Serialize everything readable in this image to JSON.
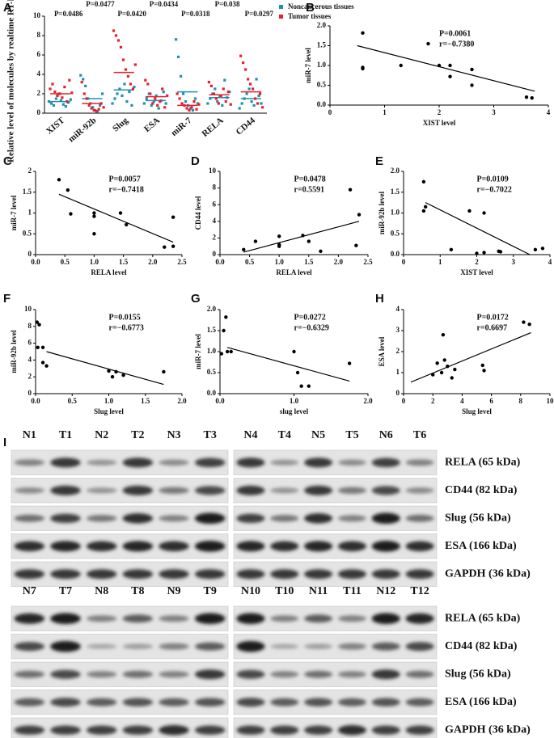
{
  "chart_data": [
    {
      "type": "dotplot",
      "panel": "A",
      "ylabel": "Relative level of molecules by realtime RT-PCR",
      "categories": [
        "XIST",
        "miR-92b",
        "Slug",
        "ESA",
        "miR-7",
        "RELA",
        "CD44"
      ],
      "pvalues": [
        "P=0.0486",
        "P=0.0477",
        "P=0.0420",
        "P=0.0434",
        "P=0.0318",
        "P=0.038",
        "P=0.0297"
      ],
      "ylim": [
        0,
        10
      ],
      "yticks": [
        0,
        2,
        4,
        6,
        8,
        10
      ],
      "series": [
        {
          "name": "Noncancerous tissues",
          "color": "#1f8fb4",
          "values": [
            [
              1.2,
              1.0,
              0.8,
              1.5,
              2.0,
              1.3,
              0.9,
              0.7,
              1.1,
              1.4
            ],
            [
              3.9,
              3.5,
              2.8,
              1.5,
              1.0,
              0.6,
              0.3,
              0.2,
              0.8,
              2.0
            ],
            [
              1.0,
              1.5,
              2.0,
              2.5,
              1.8,
              3.0,
              1.2,
              2.2,
              0.8,
              2.7
            ],
            [
              1.0,
              1.5,
              2.0,
              0.8,
              1.2,
              1.8,
              0.5,
              1.3,
              2.2,
              1.0
            ],
            [
              7.6,
              5.8,
              3.8,
              2.0,
              1.2,
              0.8,
              0.5,
              0.3,
              1.5,
              1.0
            ],
            [
              1.0,
              1.5,
              2.0,
              2.5,
              1.2,
              1.8,
              0.8,
              3.4,
              1.6,
              2.2
            ],
            [
              0.5,
              1.0,
              1.5,
              2.0,
              2.5,
              1.2,
              0.8,
              3.5,
              1.8,
              1.0
            ]
          ],
          "means": [
            1.2,
            1.5,
            2.4,
            1.3,
            2.2,
            1.6,
            1.5
          ]
        },
        {
          "name": "Tumor tissues",
          "color": "#e8202a",
          "values": [
            [
              2.5,
              3.0,
              2.2,
              1.8,
              2.0,
              1.6,
              2.7,
              1.2,
              3.4,
              2.1
            ],
            [
              3.2,
              2.0,
              1.5,
              0.8,
              0.5,
              0.3,
              0.2,
              0.4,
              1.0,
              0.6
            ],
            [
              8.5,
              8.0,
              7.5,
              6.8,
              5.5,
              4.5,
              3.8,
              3.0,
              2.5,
              5.0
            ],
            [
              3.4,
              3.0,
              2.0,
              1.0,
              1.5,
              0.8,
              1.2,
              2.5,
              0.6,
              1.8
            ],
            [
              2.0,
              1.5,
              1.0,
              0.8,
              0.5,
              0.3,
              0.6,
              1.2,
              0.4,
              0.9
            ],
            [
              3.2,
              2.8,
              2.0,
              1.5,
              1.0,
              1.8,
              2.5,
              1.2,
              2.2,
              0.9
            ],
            [
              5.9,
              5.2,
              4.5,
              3.5,
              3.0,
              2.5,
              1.5,
              1.0,
              2.0,
              0.6
            ]
          ],
          "means": [
            2.0,
            1.0,
            4.2,
            1.7,
            0.8,
            1.9,
            2.2
          ]
        }
      ]
    },
    {
      "type": "scatter",
      "panel": "B",
      "xlabel": "XIST level",
      "ylabel": "miR-7 level",
      "annotations": [
        "P=0.0061",
        "r=−0.7380"
      ],
      "color": "#000000",
      "x": [
        0.6,
        0.6,
        0.6,
        1.3,
        1.8,
        2.0,
        2.2,
        2.2,
        2.6,
        2.6,
        3.6,
        3.7
      ],
      "values": [
        1.82,
        0.95,
        0.92,
        1.0,
        1.55,
        1.0,
        1.0,
        0.72,
        0.9,
        0.5,
        0.2,
        0.18
      ],
      "fit": {
        "x": [
          0.5,
          3.75
        ],
        "y": [
          1.5,
          0.35
        ]
      },
      "xlim": [
        0,
        4
      ],
      "xticks": [
        0,
        1,
        2,
        3,
        4
      ],
      "ylim": [
        0,
        2
      ],
      "yticks": [
        {
          "value": 0,
          "label": "0.0"
        },
        {
          "value": 0.5,
          "label": "0.5"
        },
        {
          "value": 1,
          "label": "1.0"
        },
        {
          "value": 1.5,
          "label": "1.5"
        },
        {
          "value": 2,
          "label": "2.0"
        }
      ]
    },
    {
      "type": "scatter",
      "panel": "C",
      "xlabel": "RELA level",
      "ylabel": "miR-7 level",
      "annotations": [
        "P=0.0057",
        "r=−0.7418"
      ],
      "color": "#000000",
      "x": [
        0.4,
        0.55,
        0.6,
        1.0,
        1.0,
        1.0,
        1.45,
        1.55,
        2.2,
        2.35,
        2.35
      ],
      "values": [
        1.8,
        1.55,
        0.98,
        1.0,
        0.92,
        0.5,
        1.0,
        0.72,
        0.18,
        0.2,
        0.9
      ],
      "fit": {
        "x": [
          0.4,
          2.35
        ],
        "y": [
          1.45,
          0.3
        ]
      },
      "xlim": [
        0,
        2.5
      ],
      "xticks": [
        {
          "value": 0,
          "label": "0.0"
        },
        0.5,
        {
          "value": 1,
          "label": "1.0"
        },
        1.5,
        {
          "value": 2,
          "label": "2.0"
        },
        2.5
      ],
      "ylim": [
        0,
        2
      ],
      "yticks": [
        0,
        0.5,
        1,
        1.5,
        2
      ]
    },
    {
      "type": "scatter",
      "panel": "D",
      "xlabel": "RELA level",
      "ylabel": "CD44 level",
      "annotations": [
        "P=0.0478",
        "r=0.5591"
      ],
      "color": "#000000",
      "x": [
        0.4,
        0.6,
        1.0,
        1.0,
        1.0,
        1.4,
        1.5,
        1.7,
        2.2,
        2.3,
        2.35
      ],
      "values": [
        0.6,
        1.6,
        2.2,
        1.2,
        1.0,
        2.3,
        1.6,
        0.4,
        7.8,
        1.1,
        4.8
      ],
      "fit": {
        "x": [
          0.4,
          2.35
        ],
        "y": [
          0.3,
          4.0
        ]
      },
      "xlim": [
        0,
        2.5
      ],
      "xticks": [
        {
          "value": 0,
          "label": "0.0"
        },
        0.5,
        {
          "value": 1,
          "label": "1.0"
        },
        1.5,
        {
          "value": 2,
          "label": "2.0"
        },
        2.5
      ],
      "ylim": [
        0,
        10
      ],
      "yticks": [
        0,
        2,
        4,
        6,
        8,
        10
      ]
    },
    {
      "type": "scatter",
      "panel": "E",
      "xlabel": "XIST level",
      "ylabel": "miR-92b level",
      "annotations": [
        "P=0.0109",
        "r=−0.7022"
      ],
      "color": "#000000",
      "x": [
        0.55,
        0.55,
        0.6,
        1.3,
        1.8,
        2.0,
        2.2,
        2.2,
        2.6,
        2.65,
        3.6,
        3.8
      ],
      "values": [
        1.75,
        1.05,
        1.15,
        0.12,
        1.05,
        0.03,
        1.0,
        0.05,
        0.08,
        0.07,
        0.12,
        0.15
      ],
      "fit": {
        "x": [
          0.6,
          3.45
        ],
        "y": [
          1.25,
          0
        ]
      },
      "xlim": [
        0,
        4
      ],
      "xticks": [
        0,
        1,
        2,
        3,
        4
      ],
      "ylim": [
        0,
        2
      ],
      "yticks": [
        {
          "value": 0,
          "label": "0.0"
        },
        {
          "value": 0.5,
          "label": "0.5"
        },
        {
          "value": 1,
          "label": "1.0"
        },
        {
          "value": 1.5,
          "label": "1.5"
        },
        {
          "value": 2,
          "label": "2.0"
        }
      ]
    },
    {
      "type": "scatter",
      "panel": "F",
      "xlabel": "Slug level",
      "ylabel": "miR-92b level",
      "annotations": [
        "P=0.0155",
        "r=−0.6773"
      ],
      "color": "#000000",
      "x": [
        0.02,
        0.05,
        0.03,
        0.1,
        0.1,
        0.15,
        1.0,
        1.05,
        1.1,
        1.2,
        1.75
      ],
      "values": [
        8.5,
        8.2,
        5.5,
        5.5,
        3.7,
        3.3,
        2.7,
        2.0,
        2.6,
        2.2,
        2.6
      ],
      "fit": {
        "x": [
          0.15,
          1.75
        ],
        "y": [
          5.0,
          1.1
        ]
      },
      "xlim": [
        0,
        2
      ],
      "xticks": [
        {
          "value": 0,
          "label": "0.0"
        },
        0.5,
        {
          "value": 1,
          "label": "1.0"
        },
        1.5,
        {
          "value": 2,
          "label": "2.0"
        }
      ],
      "ylim": [
        0,
        10
      ],
      "yticks": [
        0,
        2,
        4,
        6,
        8,
        10
      ]
    },
    {
      "type": "scatter",
      "panel": "G",
      "xlabel": "slug level",
      "ylabel": "miR-7 level",
      "annotations": [
        "P=0.0272",
        "r=−0.6329"
      ],
      "color": "#000000",
      "x": [
        0.02,
        0.05,
        0.08,
        0.1,
        0.15,
        1.0,
        1.05,
        1.1,
        1.2,
        1.75
      ],
      "values": [
        0.95,
        1.5,
        1.82,
        1.0,
        1.0,
        1.0,
        0.5,
        0.18,
        0.18,
        0.72
      ],
      "fit": {
        "x": [
          0.1,
          1.75
        ],
        "y": [
          1.1,
          0.3
        ]
      },
      "xlim": [
        0,
        2
      ],
      "xticks": [
        {
          "value": 0,
          "label": "0.0"
        },
        {
          "value": 1,
          "label": "1.0"
        },
        {
          "value": 2,
          "label": "2.0"
        }
      ],
      "ylim": [
        0,
        2
      ],
      "yticks": [
        {
          "value": 0,
          "label": "0.0"
        },
        {
          "value": 0.5,
          "label": "0.5"
        },
        {
          "value": 1,
          "label": "1.0"
        },
        {
          "value": 1.5,
          "label": "1.5"
        },
        {
          "value": 2,
          "label": "2.0"
        }
      ]
    },
    {
      "type": "scatter",
      "panel": "H",
      "xlabel": "Slug level",
      "ylabel": "ESA level",
      "annotations": [
        "P=0.0172",
        "r=0.6697"
      ],
      "color": "#000000",
      "x": [
        2.0,
        2.3,
        2.6,
        2.7,
        2.8,
        3.0,
        3.3,
        3.5,
        5.4,
        5.5,
        8.2,
        8.6
      ],
      "values": [
        0.9,
        1.45,
        1.0,
        2.8,
        1.6,
        1.3,
        0.75,
        1.15,
        1.35,
        1.1,
        3.4,
        3.3
      ],
      "fit": {
        "x": [
          0.5,
          8.7
        ],
        "y": [
          0.55,
          2.9
        ]
      },
      "xlim": [
        0,
        10
      ],
      "xticks": [
        0,
        2,
        4,
        6,
        8,
        10
      ],
      "ylim": [
        0,
        4
      ],
      "yticks": [
        0,
        1,
        2,
        3,
        4
      ]
    }
  ],
  "blot": {
    "panel": "I",
    "groups": [
      {
        "lanes": [
          "N1",
          "T1",
          "N2",
          "T2",
          "N3",
          "T3"
        ]
      },
      {
        "lanes": [
          "N4",
          "T4",
          "N5",
          "T5",
          "N6",
          "T6"
        ]
      },
      {
        "lanes": [
          "N7",
          "T7",
          "N8",
          "T8",
          "N9",
          "T9"
        ]
      },
      {
        "lanes": [
          "N10",
          "T10",
          "N11",
          "T11",
          "N12",
          "T12"
        ]
      }
    ],
    "proteins_top": [
      "RELA (65 kDa)",
      "CD44 (82 kDa)",
      "Slug (56 kDa)",
      "ESA (166 kDa)",
      "GAPDH (36 kDa)"
    ],
    "proteins_bottom": [
      "RELA (65 kDa)",
      "CD44 (82 kDa)",
      "Slug (56 kDa)",
      "ESA (166 kDa)",
      "GAPDH (36 kDa)"
    ]
  }
}
